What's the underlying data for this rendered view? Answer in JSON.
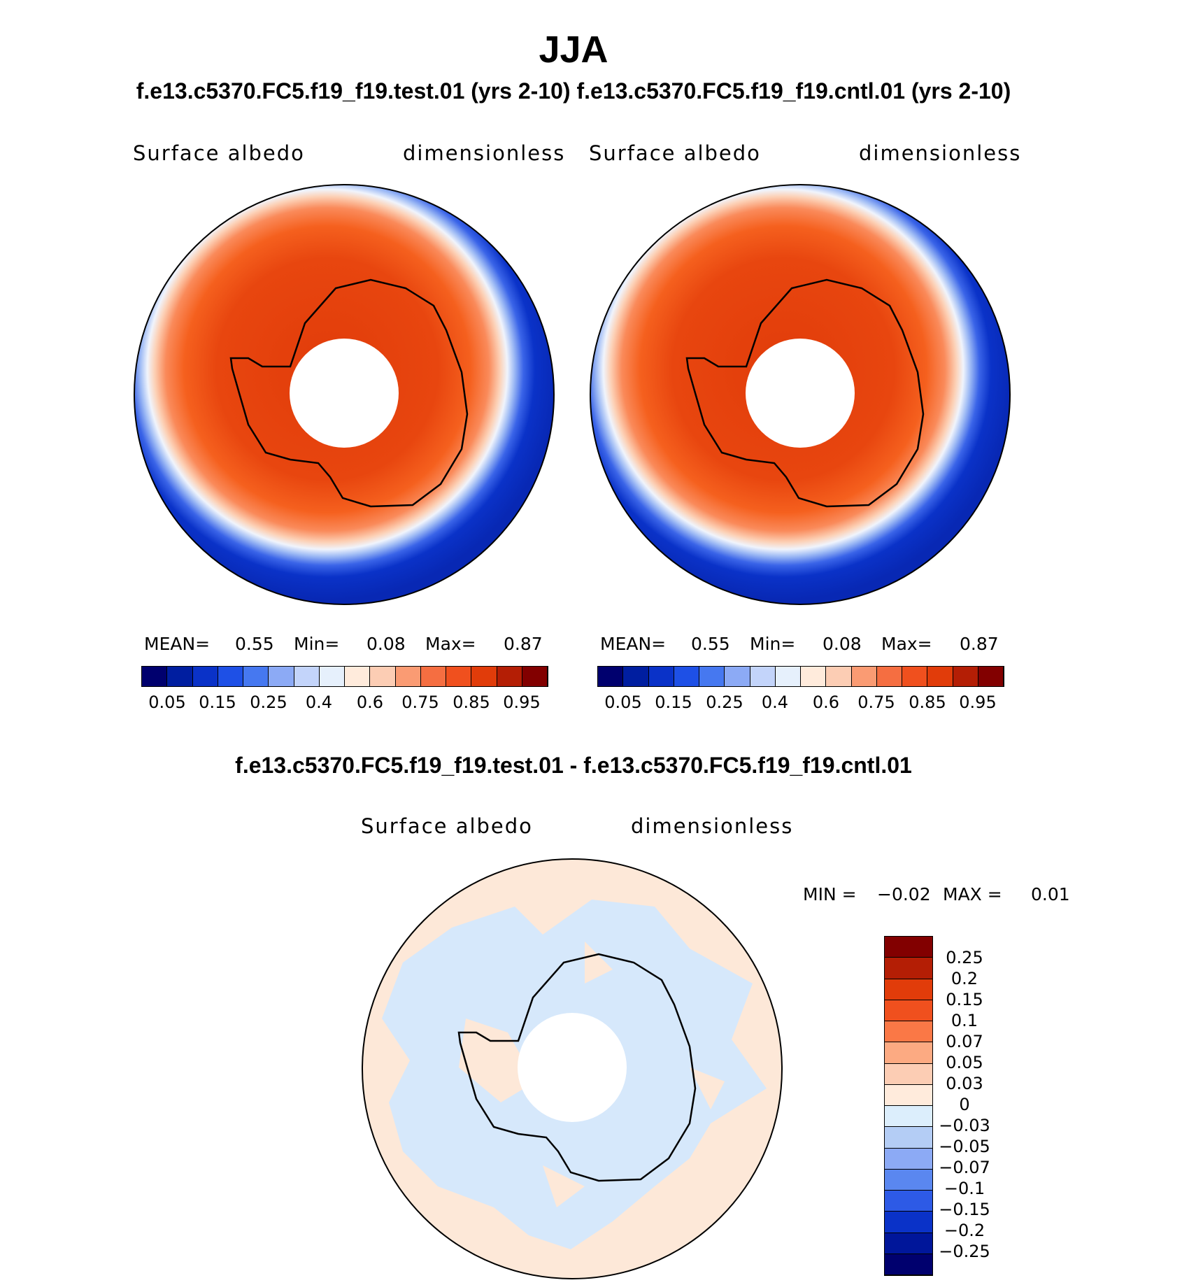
{
  "title": "JJA",
  "subtitle": "f.e13.c5370.FC5.f19_f19.test.01 (yrs 2-10) f.e13.c5370.FC5.f19_f19.cntl.01 (yrs 2-10)",
  "panels": [
    {
      "variable": "Surface albedo",
      "units": "dimensionless",
      "stats": {
        "mean_label": "MEAN=",
        "mean": "0.55",
        "min_label": "Min=",
        "min": "0.08",
        "max_label": "Max=",
        "max": "0.87"
      }
    },
    {
      "variable": "Surface albedo",
      "units": "dimensionless",
      "stats": {
        "mean_label": "MEAN=",
        "mean": "0.55",
        "min_label": "Min=",
        "min": "0.08",
        "max_label": "Max=",
        "max": "0.87"
      }
    }
  ],
  "colorbar_main": {
    "colors": [
      "#00006e",
      "#001ea0",
      "#0a32c8",
      "#1e50e6",
      "#4678f0",
      "#8caaf5",
      "#c3d4fa",
      "#e6f0fc",
      "#ffebdc",
      "#fccdb4",
      "#fa9b73",
      "#f56e41",
      "#f0501e",
      "#e13c0a",
      "#b41e05",
      "#820000"
    ],
    "labels": [
      "0.05",
      "0.15",
      "0.25",
      "0.4",
      "0.6",
      "0.75",
      "0.85",
      "0.95"
    ]
  },
  "diff": {
    "title": "f.e13.c5370.FC5.f19_f19.test.01 - f.e13.c5370.FC5.f19_f19.cntl.01",
    "variable": "Surface albedo",
    "units": "dimensionless",
    "minmax": {
      "min_label": "MIN =",
      "min": "−0.02",
      "max_label": "MAX =",
      "max": "0.01"
    }
  },
  "colorbar_diff": {
    "colors": [
      "#820000",
      "#b41e05",
      "#e13c0a",
      "#f0501e",
      "#fa7846",
      "#fcaa82",
      "#fccdb4",
      "#ffebdc",
      "#dceefc",
      "#b4cdf5",
      "#8caaf5",
      "#5a87f0",
      "#2d5ae6",
      "#0a32c8",
      "#00169a",
      "#00006e"
    ],
    "labels": [
      "0.25",
      "0.2",
      "0.15",
      "0.1",
      "0.07",
      "0.05",
      "0.03",
      "0",
      "−0.03",
      "−0.05",
      "−0.07",
      "−0.1",
      "−0.15",
      "−0.2",
      "−0.25"
    ]
  },
  "colors": {
    "ocean_dark": "#0828b4",
    "ice_core": "#e13c0a",
    "diff_pos": "#fde8d8",
    "diff_neg": "#d6e8fb",
    "coast": "#000000"
  }
}
